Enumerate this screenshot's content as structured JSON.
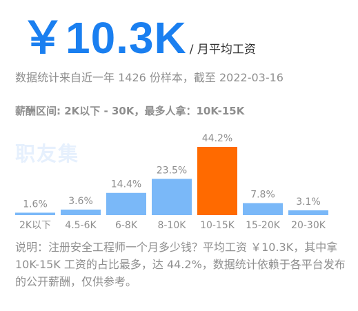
{
  "header": {
    "salary": "￥10.3K",
    "unit": "/ 月平均工资",
    "stats": "数据统计来自近一年 1426 份样本，截至 2022-03-16"
  },
  "distribution": {
    "title": "薪酬区间: 2K以下 - 30K，最多人拿：10K-15K",
    "watermark": "职友集"
  },
  "chart_data": {
    "type": "bar",
    "categories": [
      "2K以下",
      "4.5-6K",
      "6-8K",
      "8-10K",
      "10-15K",
      "15-20K",
      "20-30K"
    ],
    "values": [
      1.6,
      3.6,
      14.4,
      23.5,
      44.2,
      7.8,
      3.1
    ],
    "value_labels": [
      "1.6%",
      "3.6%",
      "14.4%",
      "23.5%",
      "44.2%",
      "7.8%",
      "3.1%"
    ],
    "colors": {
      "default": "#7ab8f8",
      "highlight": "#ff6a00"
    },
    "highlight_index": 4
  },
  "description": "说明：注册安全工程师一个月多少钱？平均工资 ￥10.3K，其中拿 10K-15K 工资的占比最多，达 44.2%，数据统计依赖于各平台发布的公开薪酬，仅供参考。"
}
